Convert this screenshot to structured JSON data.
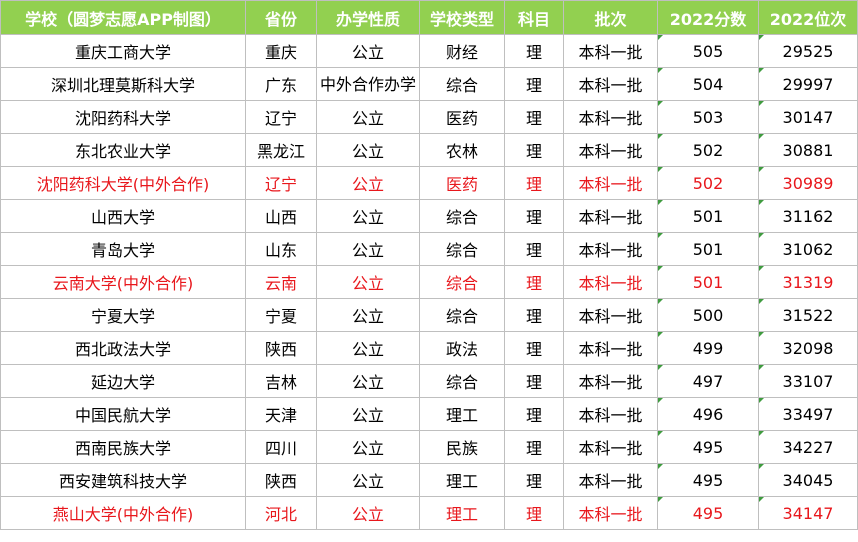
{
  "table": {
    "headers": [
      "学校（圆梦志愿APP制图）",
      "省份",
      "办学性质",
      "学校类型",
      "科目",
      "批次",
      "2022分数",
      "2022位次"
    ],
    "rows": [
      {
        "school": "重庆工商大学",
        "province": "重庆",
        "nature": "公立",
        "type": "财经",
        "subject": "理",
        "batch": "本科一批",
        "score": "505",
        "rank": "29525",
        "highlight": false
      },
      {
        "school": "深圳北理莫斯科大学",
        "province": "广东",
        "nature": "中外合作办学",
        "type": "综合",
        "subject": "理",
        "batch": "本科一批",
        "score": "504",
        "rank": "29997",
        "highlight": false
      },
      {
        "school": "沈阳药科大学",
        "province": "辽宁",
        "nature": "公立",
        "type": "医药",
        "subject": "理",
        "batch": "本科一批",
        "score": "503",
        "rank": "30147",
        "highlight": false
      },
      {
        "school": "东北农业大学",
        "province": "黑龙江",
        "nature": "公立",
        "type": "农林",
        "subject": "理",
        "batch": "本科一批",
        "score": "502",
        "rank": "30881",
        "highlight": false
      },
      {
        "school": "沈阳药科大学(中外合作)",
        "province": "辽宁",
        "nature": "公立",
        "type": "医药",
        "subject": "理",
        "batch": "本科一批",
        "score": "502",
        "rank": "30989",
        "highlight": true
      },
      {
        "school": "山西大学",
        "province": "山西",
        "nature": "公立",
        "type": "综合",
        "subject": "理",
        "batch": "本科一批",
        "score": "501",
        "rank": "31162",
        "highlight": false
      },
      {
        "school": "青岛大学",
        "province": "山东",
        "nature": "公立",
        "type": "综合",
        "subject": "理",
        "batch": "本科一批",
        "score": "501",
        "rank": "31062",
        "highlight": false
      },
      {
        "school": "云南大学(中外合作)",
        "province": "云南",
        "nature": "公立",
        "type": "综合",
        "subject": "理",
        "batch": "本科一批",
        "score": "501",
        "rank": "31319",
        "highlight": true
      },
      {
        "school": "宁夏大学",
        "province": "宁夏",
        "nature": "公立",
        "type": "综合",
        "subject": "理",
        "batch": "本科一批",
        "score": "500",
        "rank": "31522",
        "highlight": false
      },
      {
        "school": "西北政法大学",
        "province": "陕西",
        "nature": "公立",
        "type": "政法",
        "subject": "理",
        "batch": "本科一批",
        "score": "499",
        "rank": "32098",
        "highlight": false
      },
      {
        "school": "延边大学",
        "province": "吉林",
        "nature": "公立",
        "type": "综合",
        "subject": "理",
        "batch": "本科一批",
        "score": "497",
        "rank": "33107",
        "highlight": false
      },
      {
        "school": "中国民航大学",
        "province": "天津",
        "nature": "公立",
        "type": "理工",
        "subject": "理",
        "batch": "本科一批",
        "score": "496",
        "rank": "33497",
        "highlight": false
      },
      {
        "school": "西南民族大学",
        "province": "四川",
        "nature": "公立",
        "type": "民族",
        "subject": "理",
        "batch": "本科一批",
        "score": "495",
        "rank": "34227",
        "highlight": false
      },
      {
        "school": "西安建筑科技大学",
        "province": "陕西",
        "nature": "公立",
        "type": "理工",
        "subject": "理",
        "batch": "本科一批",
        "score": "495",
        "rank": "34045",
        "highlight": false
      },
      {
        "school": "燕山大学(中外合作)",
        "province": "河北",
        "nature": "公立",
        "type": "理工",
        "subject": "理",
        "batch": "本科一批",
        "score": "495",
        "rank": "34147",
        "highlight": true
      }
    ]
  },
  "colors": {
    "header_background": "#92d050",
    "header_text": "#ffffff",
    "highlight_text": "#e8171c",
    "grid_border": "#bfbfbf",
    "cell_marker": "#3f9b3f"
  }
}
